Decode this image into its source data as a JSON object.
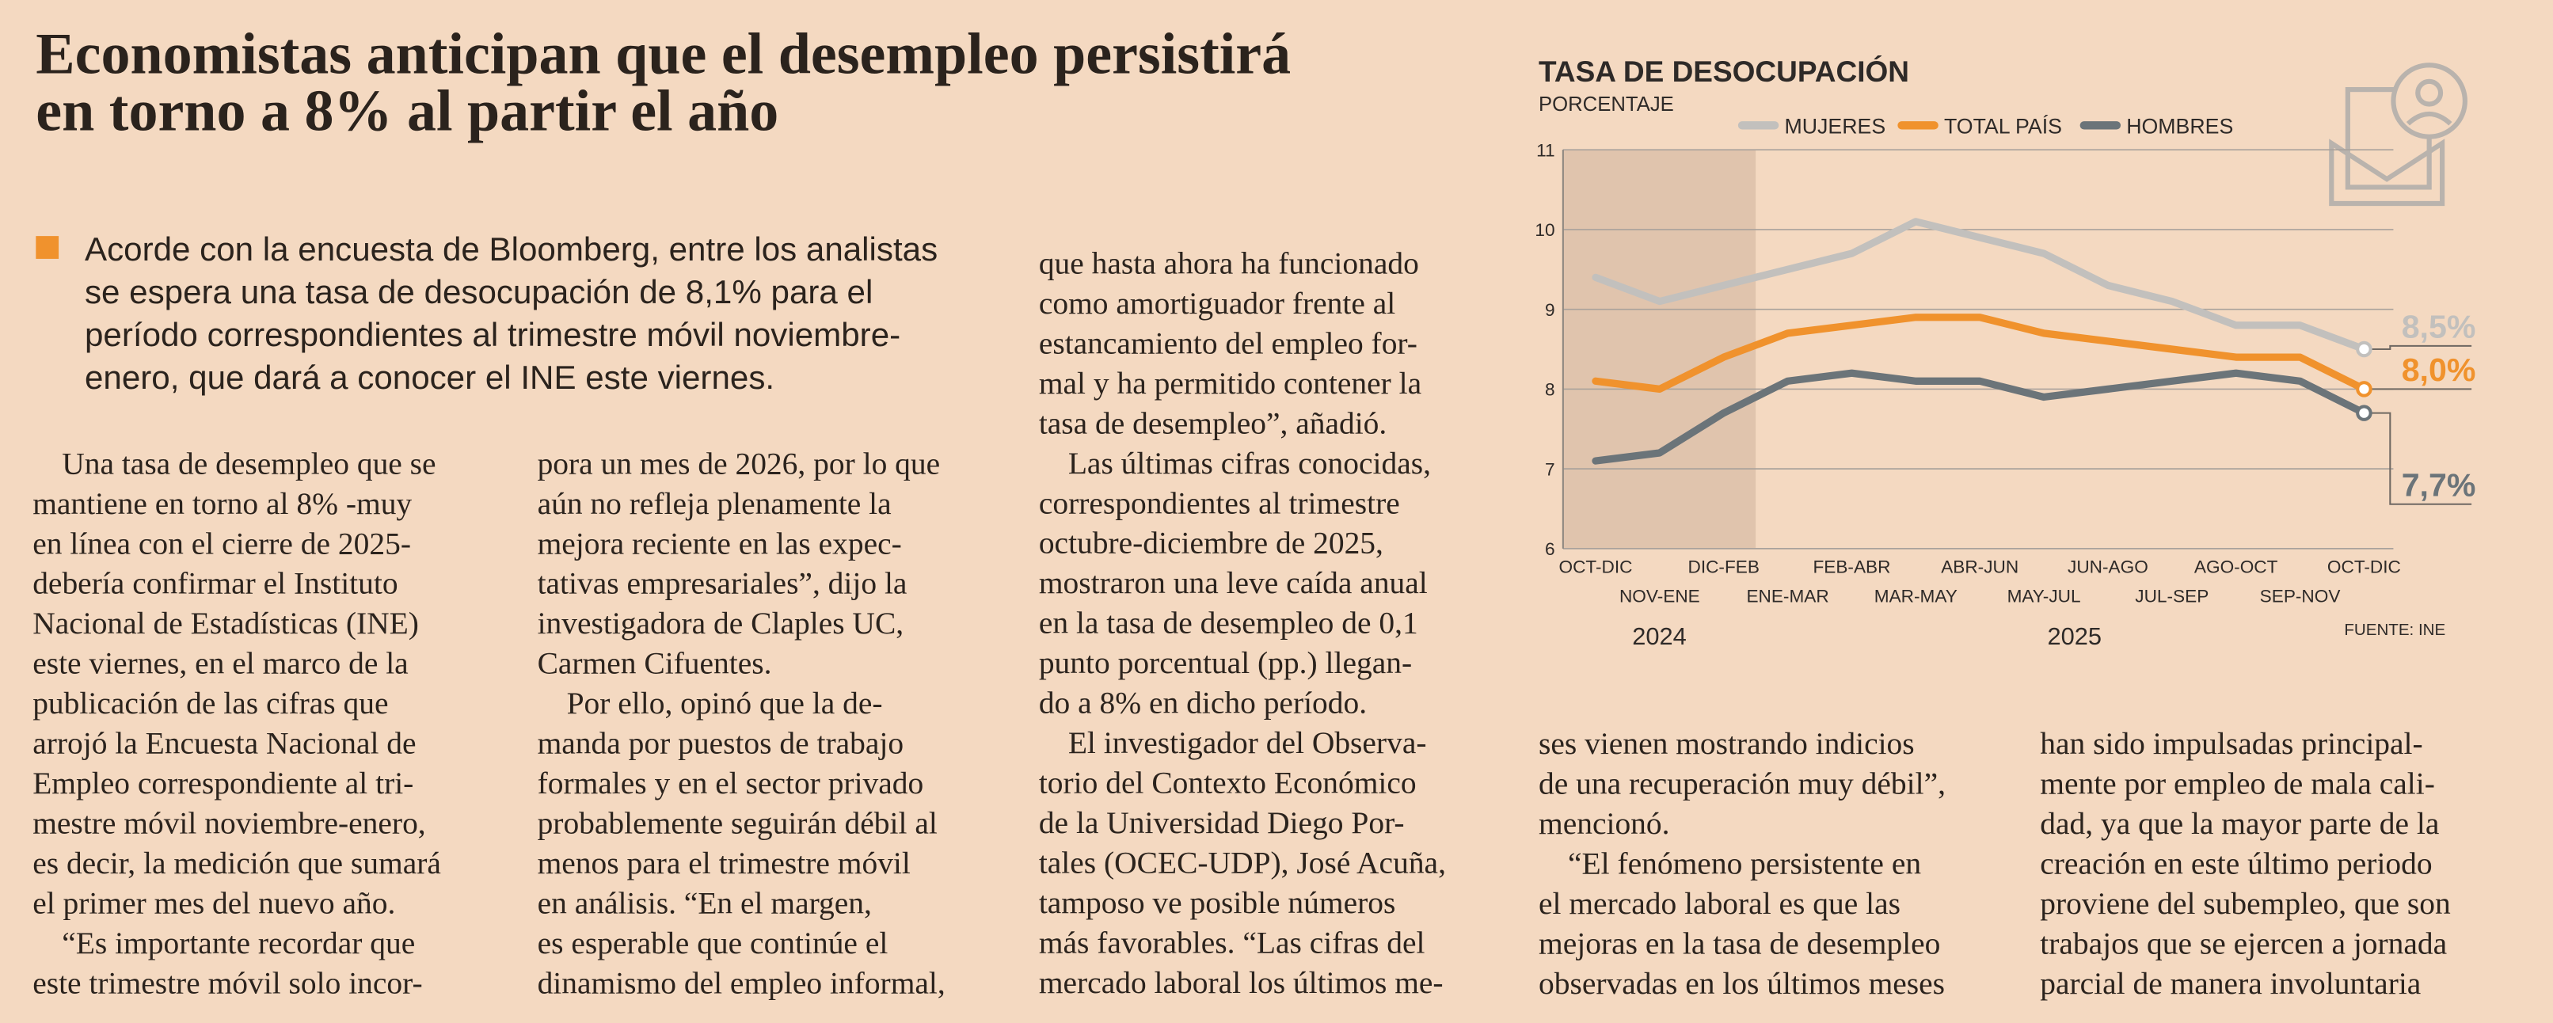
{
  "article": {
    "headline": [
      "Economistas anticipan que el desempleo persistirá",
      "en torno a 8% al partir el año"
    ],
    "lead": [
      "Acorde con la encuesta de Bloomberg, entre los analistas",
      "se espera una tasa de desocupación de 8,1% para el",
      "período correspondientes al trimestre móvil noviembre-",
      "enero, que dará a conocer el INE este viernes."
    ],
    "columns": [
      {
        "continues": false,
        "paragraphs": [
          [
            "Una tasa de desempleo que se",
            "mantiene en torno al 8% -muy",
            "en línea con el cierre de 2025-",
            "debería confirmar el Instituto",
            "Nacional de Estadísticas (INE)",
            "este viernes, en el marco de la",
            "publicación de las cifras que",
            "arrojó la Encuesta Nacional de",
            "Empleo correspondiente al tri-",
            "mestre móvil noviembre-enero,",
            "es decir, la medición que sumará",
            "el primer mes del nuevo año."
          ],
          [
            "“Es importante recordar que",
            "este trimestre móvil solo incor-"
          ]
        ]
      },
      {
        "continues": true,
        "paragraphs": [
          [
            "pora un mes de 2026, por lo que",
            "aún no refleja plenamente la",
            "mejora reciente en las expec-",
            "tativas empresariales”, dijo la",
            "investigadora de Claples UC,",
            "Carmen Cifuentes."
          ],
          [
            "Por ello, opinó que la de-",
            "manda por puestos de trabajo",
            "formales y en el sector privado",
            "probablemente seguirán débil al",
            "menos para el trimestre móvil",
            "en análisis. “En el margen,",
            "es esperable que continúe el",
            "dinamismo del empleo informal,"
          ]
        ]
      },
      {
        "continues": true,
        "paragraphs": [
          [
            "que hasta ahora ha funcionado",
            "como amortiguador frente al",
            "estancamiento del empleo for-",
            "mal y ha permitido contener la",
            "tasa de desempleo”, añadió."
          ],
          [
            "Las últimas cifras conocidas,",
            "correspondientes al trimestre",
            "octubre-diciembre de 2025,",
            "mostraron una leve caída anual",
            "en la tasa de desempleo de 0,1",
            "punto porcentual (pp.) llegan-",
            "do a 8% en dicho período."
          ],
          [
            "El investigador del Observa-",
            "torio del Contexto Económico",
            "de la Universidad Diego Por-",
            "tales (OCEC-UDP), José Acuña,",
            "tamposo ve posible números",
            "más favorables. “Las cifras del",
            "mercado laboral los últimos me-"
          ]
        ]
      },
      {
        "continues": true,
        "paragraphs": [
          [
            "ses vienen mostrando indicios",
            "de una recuperación muy débil”,",
            "mencionó."
          ],
          [
            "“El fenómeno persistente en",
            "el mercado laboral es que las",
            "mejoras en la tasa de desempleo",
            "observadas en los últimos meses"
          ]
        ]
      },
      {
        "continues": true,
        "paragraphs": [
          [
            "han sido impulsadas principal-",
            "mente por empleo de mala cali-",
            "dad, ya que la mayor parte de la",
            "creación en este último periodo",
            "proviene del subempleo, que son",
            "trabajos que se ejercen a jornada",
            "parcial de manera involuntaria"
          ]
        ]
      }
    ]
  },
  "chart_data": {
    "type": "line",
    "title": "TASA DE DESOCUPACIÓN",
    "subtitle": "PORCENTAJE",
    "source": "FUENTE: INE",
    "categories": [
      "OCT-DIC",
      "NOV-ENE",
      "DIC-FEB",
      "ENE-MAR",
      "FEB-ABR",
      "MAR-MAY",
      "ABR-JUN",
      "MAY-JUL",
      "JUN-AGO",
      "JUL-SEP",
      "AGO-OCT",
      "SEP-NOV",
      "OCT-DIC"
    ],
    "year_groups": [
      {
        "label": "2024",
        "span": 3,
        "shaded": true
      },
      {
        "label": "2025",
        "span": 10,
        "shaded": false
      }
    ],
    "series": [
      {
        "name": "MUJERES",
        "color": "#c2c0bd",
        "values": [
          9.4,
          9.1,
          9.3,
          9.5,
          9.7,
          10.1,
          9.9,
          9.7,
          9.3,
          9.1,
          8.8,
          8.8,
          8.5
        ],
        "value_labels": [
          null,
          null,
          null,
          null,
          null,
          null,
          null,
          null,
          null,
          null,
          null,
          null,
          "8,5%"
        ]
      },
      {
        "name": "TOTAL PAÍS",
        "color": "#f0922d",
        "values": [
          8.1,
          8.0,
          8.4,
          8.7,
          8.8,
          8.9,
          8.9,
          8.7,
          8.6,
          8.5,
          8.4,
          8.4,
          8.0
        ],
        "value_labels": [
          null,
          null,
          null,
          null,
          null,
          null,
          null,
          null,
          null,
          null,
          null,
          null,
          "8,0%"
        ]
      },
      {
        "name": "HOMBRES",
        "color": "#6b7479",
        "values": [
          7.1,
          7.2,
          7.7,
          8.1,
          8.2,
          8.1,
          8.1,
          7.9,
          8.0,
          8.1,
          8.2,
          8.1,
          7.7
        ],
        "value_labels": [
          null,
          null,
          null,
          null,
          null,
          null,
          null,
          null,
          null,
          null,
          null,
          null,
          "7,7%"
        ]
      }
    ],
    "ylim": [
      6,
      11
    ],
    "yticks": [
      6,
      7,
      8,
      9,
      10,
      11
    ],
    "grid": true
  }
}
